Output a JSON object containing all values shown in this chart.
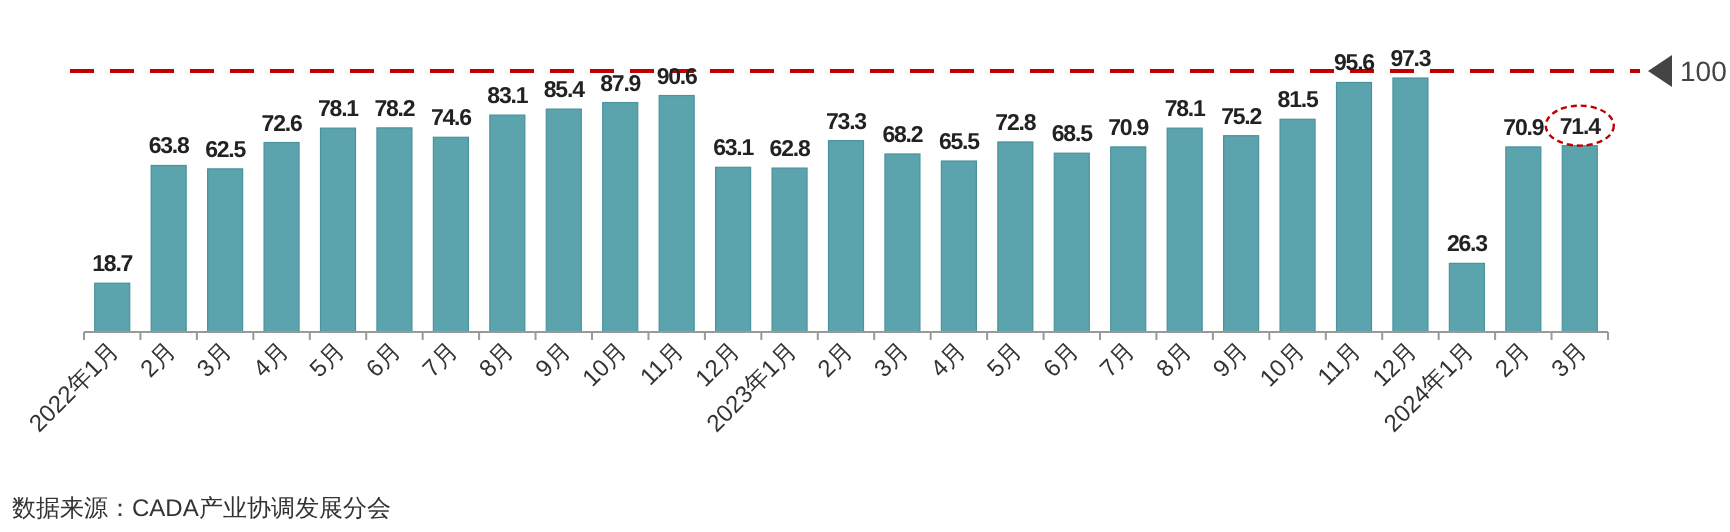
{
  "chart_data": {
    "type": "bar",
    "categories": [
      "2022年1月",
      "2月",
      "3月",
      "4月",
      "5月",
      "6月",
      "7月",
      "8月",
      "9月",
      "10月",
      "11月",
      "12月",
      "2023年1月",
      "2月",
      "3月",
      "4月",
      "5月",
      "6月",
      "7月",
      "8月",
      "9月",
      "10月",
      "11月",
      "12月",
      "2024年1月",
      "2月",
      "3月"
    ],
    "values": [
      18.7,
      63.8,
      62.5,
      72.6,
      78.1,
      78.2,
      74.6,
      83.1,
      85.4,
      87.9,
      90.6,
      63.1,
      62.8,
      73.3,
      68.2,
      65.5,
      72.8,
      68.5,
      70.9,
      78.1,
      75.2,
      81.5,
      95.6,
      97.3,
      26.3,
      70.9,
      71.4
    ],
    "color": "#5ba3ad",
    "tick_labels": "x",
    "data_labels": true,
    "ref_lines": [
      {
        "axis": "y",
        "value": 100,
        "label": "100",
        "color": "#c00000",
        "line_style": "dashed"
      }
    ],
    "annotations": [
      "数据来源：CADA产业协调发展分会"
    ]
  }
}
